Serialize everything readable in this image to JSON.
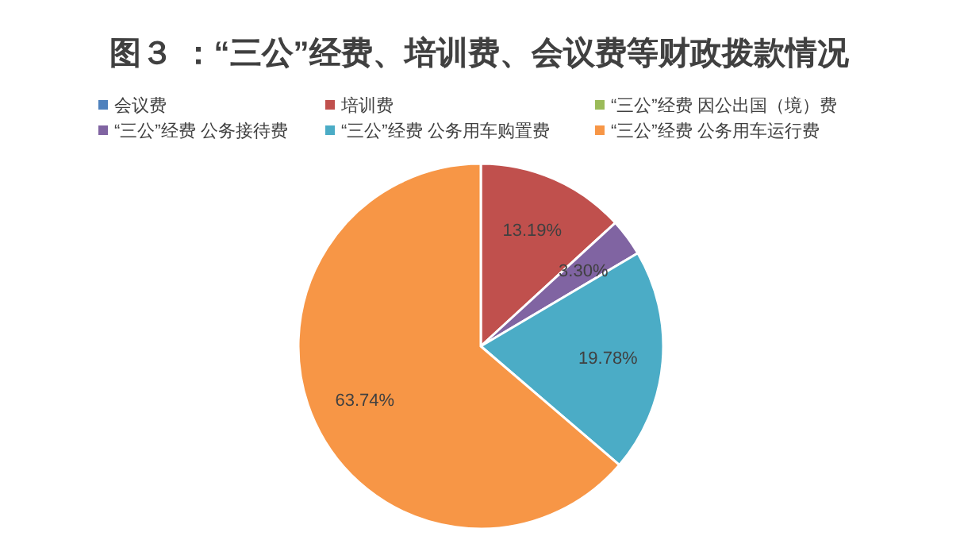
{
  "chart_data": {
    "type": "pie",
    "title": "图３ ：“三公”经费、培训费、会议费等财政拨款情况",
    "categories": [
      "会议费",
      "培训费",
      "“三公”经费 因公出国（境）费",
      "“三公”经费 公务接待费",
      "“三公”经费 公务用车购置费",
      "“三公”经费 公务用车运行费"
    ],
    "values": [
      0,
      13.19,
      0,
      3.3,
      19.78,
      63.74
    ],
    "colors": [
      "#4f81bd",
      "#c0504d",
      "#9bbb59",
      "#8064a2",
      "#4bacc6",
      "#f79646"
    ],
    "value_labels": [
      null,
      "13.19%",
      null,
      "3.30%",
      "19.78%",
      "63.74%"
    ],
    "legend": "top"
  }
}
